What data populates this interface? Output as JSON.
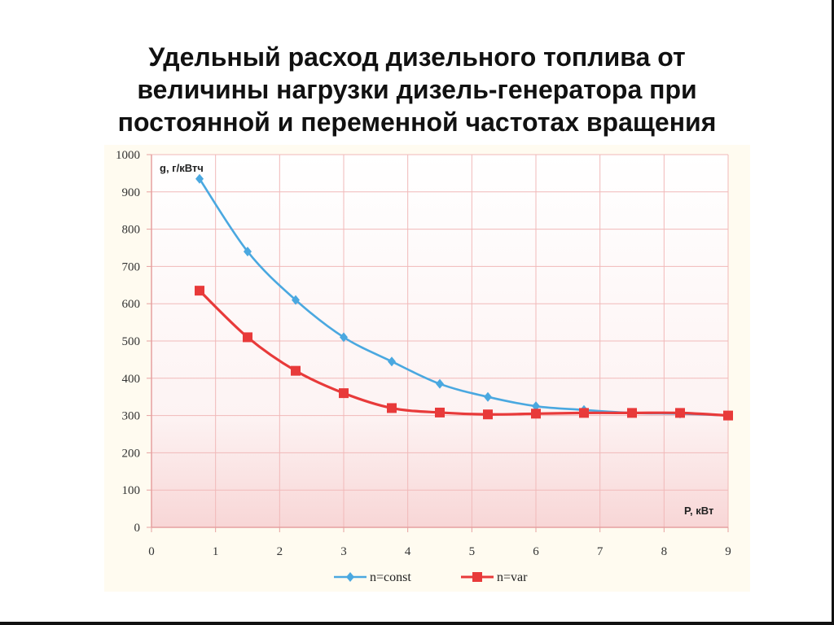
{
  "slide": {
    "title_lines": [
      "Удельный расход дизельного топлива от",
      "величины нагрузки дизель-генератора при",
      "постоянной и переменной частотах вращения"
    ]
  },
  "chart_data": {
    "type": "line",
    "ylabel": "g, г/кВтч",
    "xlabel": "P, кВт",
    "xlim": [
      0,
      9
    ],
    "ylim": [
      0,
      1000
    ],
    "x_ticks": [
      "0",
      "1",
      "2",
      "3",
      "4",
      "5",
      "6",
      "7",
      "8",
      "9"
    ],
    "y_ticks": [
      "0",
      "100",
      "200",
      "300",
      "400",
      "500",
      "600",
      "700",
      "800",
      "900",
      "1000"
    ],
    "grid": true,
    "legend_position": "bottom",
    "series": [
      {
        "name": "n=const",
        "color": "#4aa8e0",
        "marker": "diamond",
        "x": [
          0.75,
          1.5,
          2.25,
          3.0,
          3.75,
          4.5,
          5.25,
          6.0,
          6.75,
          7.5,
          8.25,
          9.0
        ],
        "values": [
          935,
          740,
          610,
          510,
          445,
          385,
          350,
          325,
          315,
          307,
          305,
          300
        ]
      },
      {
        "name": "n=var",
        "color": "#e83a3a",
        "marker": "square",
        "x": [
          0.75,
          1.5,
          2.25,
          3.0,
          3.75,
          4.5,
          5.25,
          6.0,
          6.75,
          7.5,
          8.25,
          9.0
        ],
        "values": [
          635,
          510,
          420,
          360,
          320,
          308,
          303,
          305,
          307,
          307,
          307,
          300
        ]
      }
    ]
  }
}
